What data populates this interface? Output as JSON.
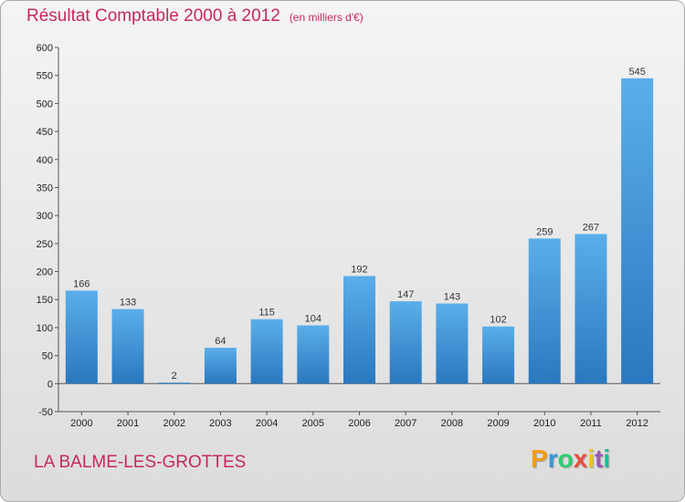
{
  "chart_data": {
    "type": "bar",
    "title": "Résultat Comptable 2000 à 2012",
    "subtitle": "(en milliers d'€)",
    "categories": [
      "2000",
      "2001",
      "2002",
      "2003",
      "2004",
      "2005",
      "2006",
      "2007",
      "2008",
      "2009",
      "2010",
      "2011",
      "2012"
    ],
    "values": [
      166,
      133,
      2,
      64,
      115,
      104,
      192,
      147,
      143,
      102,
      259,
      267,
      545
    ],
    "ylim": [
      -50,
      600
    ],
    "yticks": [
      -50,
      0,
      50,
      100,
      150,
      200,
      250,
      300,
      350,
      400,
      450,
      500,
      550,
      600
    ],
    "grid": false,
    "bar_color": "#3a8fd6"
  },
  "commune": "LA BALME-LES-GROTTES",
  "logo": {
    "letters": [
      "P",
      "r",
      "o",
      "x",
      "i",
      "t",
      "i"
    ],
    "colors": [
      "#f39c12",
      "#3498db",
      "#2ecc71",
      "#e74c3c",
      "#f1c40f",
      "#9b59b6",
      "#1abc9c"
    ]
  }
}
